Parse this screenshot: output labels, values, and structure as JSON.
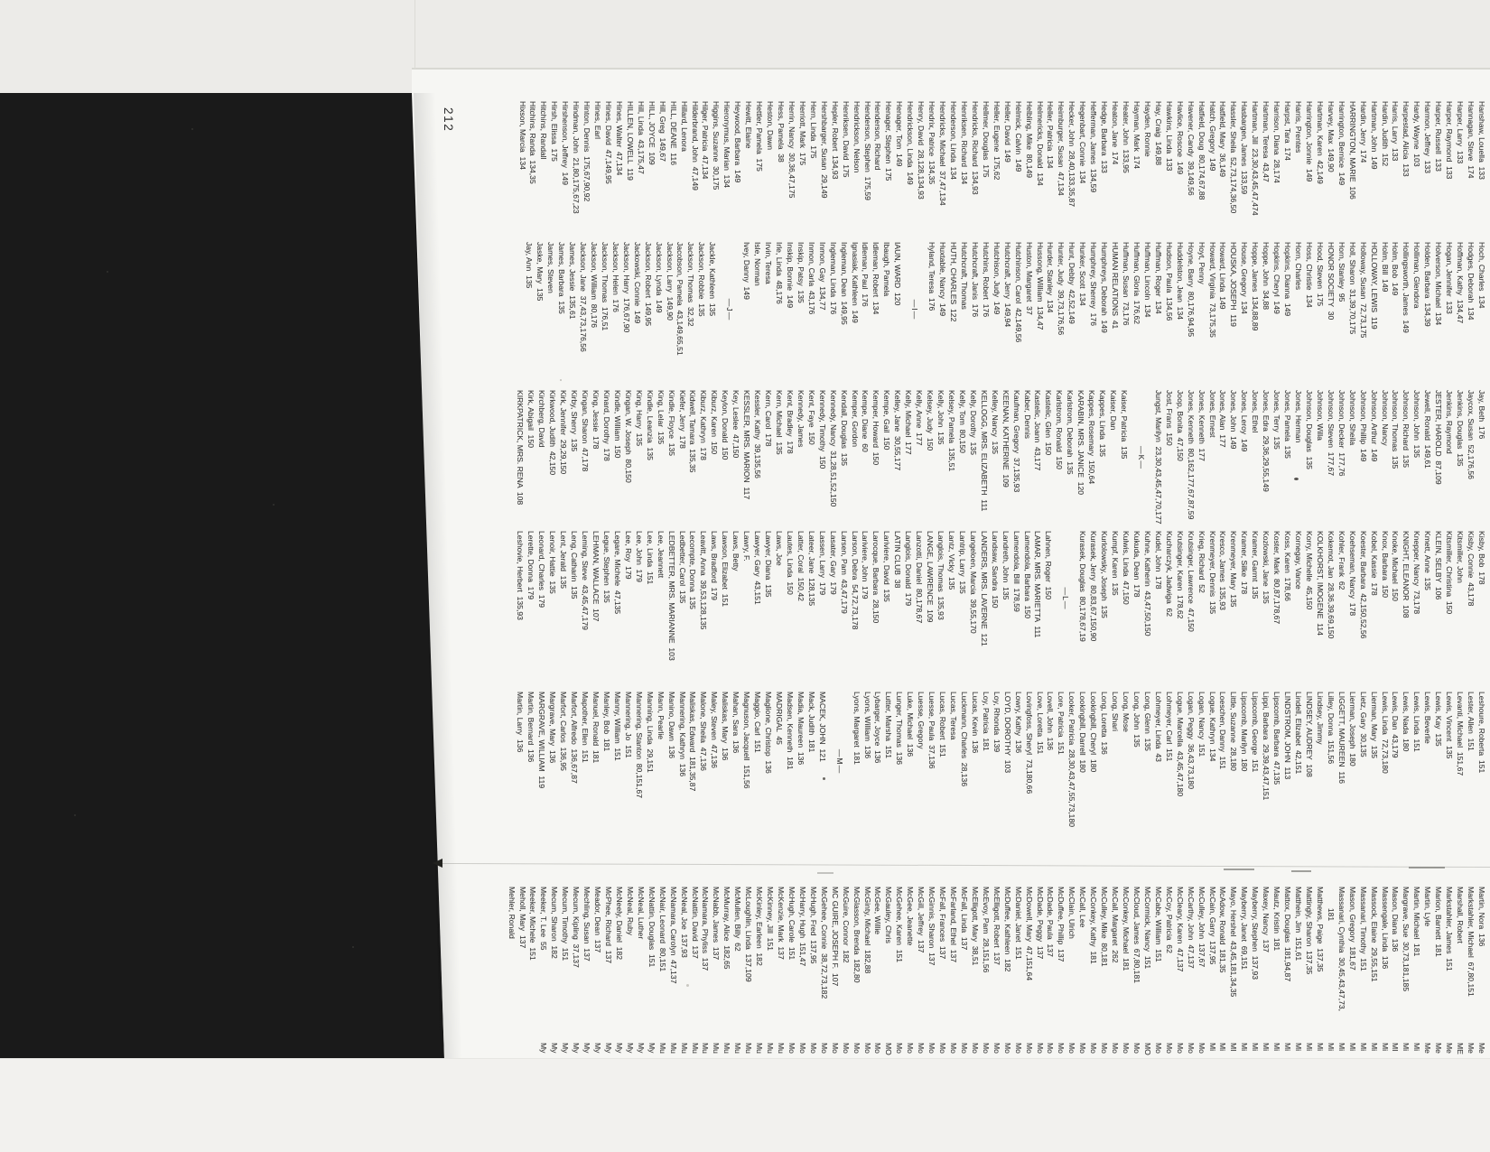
{
  "page_number": "212",
  "colors": {
    "paper": "#f6f6f3",
    "backing": "#1a1a1a",
    "ink": "#3a3a3a",
    "top_strip": "#ecebe8",
    "bottom_sheet": "#f2f1ee"
  },
  "columns": [
    {
      "name": "column-1",
      "entries": [
        "Hanshaw, Louella  133",
        "Hannagan, Steve  174",
        "Harper, Larry  133",
        "Harper, Raymond  133",
        "Harper, Russell  133",
        "Harmon, Jeffrey  133",
        "Hardy, Wayne  103",
        "Harpestad, Alicia  133",
        "Harris, Larry  133",
        "Hardin, Judith  152",
        "Hartman, John  149",
        "Hardin, Jerry  174",
        "HARRINGTON, MARIE  106",
        "Harrington, Bernice  149",
        "Harvey, Max  149,90",
        "Hartman, Karen  42,149",
        "Harrington, Jonnie  149",
        "Harris, Prentes",
        "Harpst, Tara  174",
        "Harrison, Diana  28,174",
        "Hartman, Teresa  43,47",
        "Hartman, Jill  23,30,43,45,47,474",
        "Hasbargen, James  133,59",
        "Hassler, Sheila  52,73,174,36,50",
        "Hatfield, Mary  36,149",
        "Hatch, Gregory  149",
        "Hatfield, Doug  80,174,67,88",
        "Havener, Candy  39,149,56",
        "Havlice, Roscoe  149",
        "Hawkins, Linda  133",
        "Hay, Craig  149,88",
        "Hayden, Ronnie",
        "Hayman, Mark  174",
        "Heater, John  133,95",
        "Heaton, Jane  174",
        "Hedge, Barbara  133",
        "Hefferman, James  134,59",
        "Hegenbart, Connie  134",
        "Hecker, John  28,40,133,35,87",
        "Heimburger, Susan  47,134",
        "Heller, Patricia  134",
        "Helmericks, Donald  134",
        "Helbling, Mike  80,149",
        "Helmick, Calvin  149",
        "Heller, David  149",
        "Heller, Eugene  175,62",
        "Hellmer, Douglas  175",
        "Hendricks, Richard  134,93",
        "Henriksen, Richard  134",
        "Henderson, Linda  134",
        "Hendricks, Michael  37,47,134",
        "Hendrix, Patrice  134,35",
        "Henry, David  28,128,134,93",
        "Hendrickson, Linda  149",
        "Henager, Tom  149",
        "Henager, Stephen  175",
        "Henderson, Richard",
        "Henderson, Stephen  175,59",
        "Hendrickson, Nelson",
        "Henriksen, David  175",
        "Hepler, Robert  134,93",
        "Hershbarger, Susan  29,149",
        "Hern, Linda  175",
        "Herriott, Mark  175",
        "Herrin, Nancy  30,36,47,175",
        "Hess, Pamela  38",
        "Heston, Dawn",
        "Hettler, Pamela  175",
        "Hewitt, Elaine",
        "Heywood, Barbara  149",
        "Hieronymus, Marian  134",
        "Higgins, Suzanne  30,175",
        "Hilger, Patricia  47,134",
        "Hilderbrand, John  47,149",
        "Hillard, Lenora",
        "HILL, DEANE  116",
        "Hill, Greg  149,67",
        "HILL, JOYCE  109",
        "Hill, Linda  43,175,47",
        "HILLEN, LOWELL  119",
        "Hines, Walter  47,134",
        "Hines, David  47,149,95",
        "Hines, Earl",
        "Hinton, Dennis  175,67,90,92",
        "Hindman, John  21,80,175,67,23",
        "Hirshenson, Jeffrey  149",
        "Hirsh, Elissa  175",
        "Hitchins, Randall",
        "Hitchins, Randa  134,35",
        "Hixson, Marcia  134"
      ]
    },
    {
      "name": "column-2",
      "entries": [
        "Hoch, Charles  134",
        "Hodges, Deborah  134",
        "Hoffman, Kathy  134,47",
        "Hogan, Jennifer  133",
        "Holverson, Michael  134",
        "Holden, Barbara  134,39",
        "Holliman, Glendora",
        "Hollingsworth, James  149",
        "Holm, Bob  149",
        "Holm, Bill  149",
        "HOLLOWAY, LEWIS  119",
        "Holloway, Susan  72,73,175",
        "Holl, Sharon  31,39,70,175",
        "Horn, Stanley  95",
        "HONOR SOCIETY  30",
        "Hood, Steven  175",
        "Hoss, Christie  134",
        "Horn, Charles",
        "Hopkins, Dianna  149",
        "Hopkins, Cheryl  149",
        "Hoppe, John  34,88",
        "Hoppe, James  134,88,89",
        "House, Gregory  134",
        "HOUSKA, JOSEPH  119",
        "Howard, Linda  149",
        "Howard, Virginia  73,175,35",
        "Hoyt, Penny",
        "Hoyne, Barry  80,176,94,95",
        "Huddelston, Jean  134",
        "Hudson, Paula  134,56",
        "Huffman, Roger  134",
        "Huffman, Lincoln  134",
        "Huffman, Gloria  176,62",
        "Huffman, Susan  73,176",
        "HUMAN RELATIONS  41",
        "Humphreys, Deborah  149",
        "Humphrey, Sherrey  176",
        "Hunker, Scott  134",
        "Hunt, Debby  42,52,149",
        "Hunter, Judy  39,73,176,56",
        "Hurder, Stanley  134",
        "Hussong, William  134,47",
        "Huston, Margaret  37",
        "Hutchinson, Carol  42,149,56",
        "Hutchcraft, Jerry  149,94",
        "Hutchison, Judy  149",
        "Hutchins, Robert  176",
        "Hutchcraft, Janis  176",
        "Hutchcraft, Thomas",
        "HUTH, CHARLES  122",
        "Huxtable, Nancy  149",
        "Hyland, Teresa  176",
        "—I—",
        "IAUN, WARD  120",
        "Ibaugh, Pamela",
        "Idleman, Robert  134",
        "Idleman, Paul  176",
        "Ignasiak, Kathleen  149",
        "Ingleman, Dean  149,95",
        "Ingleman, Linda  176",
        "Inmon, Gay  134,77",
        "Inmon, Carla  43,176",
        "Inskip, Patsy  135",
        "Inskip, Bonnie  149",
        "Irle, Linda  48,176",
        "Irvin, Teresa",
        "Isle, Norman",
        "Ivey, Danny  149",
        "—J—",
        "Jackle, Kathleen  135",
        "Jackson, Robbie  135",
        "Jackson, Thomas  32,32",
        "Jacobson, Pamela  43,149,65,51",
        "Jackson, Larry  149,90",
        "Jackson, Lynda  149",
        "Jackson, Robert  149,95",
        "Jackowski, Connie  149",
        "Jackson, Harry  176,67,90",
        "Jackson, Helen  176",
        "Jackson, Thomas  176,51",
        "Jackson, William  80,176",
        "Jackson, Jane  37,43,73,176,56",
        "James, Jessie  135,61",
        "James, Barbara  135",
        "James, Steven",
        "Jaske, Mary  135",
        "Jay, Ann  135"
      ]
    },
    {
      "name": "column-3",
      "entries": [
        "Jay, Beth  176",
        "Jaycox, Susan  52,176,56",
        "Jenkins, Douglas  135",
        "Jenkins, Raymond",
        "JESTER, HAROLD  87,109",
        "Jewell, Ronald  149,61",
        "Johnson, John  135",
        "Johnson, Richard  135",
        "Johnson, Thomas  135",
        "Johnson, Nancy",
        "Johnson, Arthur  149",
        "Johnson, Phillip  149",
        "Johnson, Sheila",
        "Johnson, Decker  177,76",
        "Johnson, Steven  177,67",
        "Johnson, Willa",
        "Johnson, Douglas  135",
        "Jones, Herman",
        "Jones, Pamela  135",
        "Jones, Terry  135",
        "Jones, Edra  29,36,29,55,149",
        "Jones, Ethel",
        "Jones, Leroy  149",
        "Jones, John  149",
        "Jones, Alan  177",
        "Jones, Ernest",
        "Jones, Kenneth  177",
        "Jones, Kenneth  80,162,177,67,87,59",
        "Joop, Bonita  47,150",
        "Jost, Frans  150",
        "Jungst, Marilyn  23,30,43,45,47,70,177",
        "—K—",
        "Kaiser, Patricia  135",
        "Kaiser, Dan",
        "Kappes, Linda  135",
        "Kappes, Rosemary  150,64",
        "KARABIN, MRS. JANICE  120",
        "Karlstrom, Deborah  135",
        "Karlstrom, Ronald  150",
        "Kastelic, Glen  150",
        "Kastelic, Joann  43,177",
        "Kaber, Dennis",
        "Kaufman, Gregory  37,135,93",
        "KEENAN, KATHERINE  109",
        "Kelley, Nancy  135",
        "KELLOGG, MRS. ELIZABETH  111",
        "Kelly, Dorothy  135",
        "Kelly, Tom  80,150",
        "Kelsey, Pamela  135,51",
        "Kelly, John  135",
        "Kelsey, Judy  150",
        "Kelly, Anne  177",
        "Kelly, Michael  177",
        "Kelley, Jane  30,55,177",
        "Kempe, Gail  150",
        "Kemper, Howard  150",
        "Kempe, Diane  60",
        "Kemper, Gordon",
        "Kendall, Douglas  135",
        "Kennedy, Nancy  31,28,51,52,150",
        "Kennedy, Timothy  150",
        "Kent, Faye  150",
        "Kennedy, James",
        "Kent, Bradley  178",
        "Kern, Michael  135",
        "Kern, Carol  178",
        "Kessler, Kathy  39,135,56",
        "KESSLER, MRS. MARION  117",
        "Key, Leslee  47,150",
        "Keylon, Donald  150",
        "Kiburz, Karen  150",
        "Kiburz, Kathryn  178",
        "Kidwell, Tamara  135,35",
        "Kiefer, Jerry  178",
        "Kindle, Floyce  135",
        "King, Lelar  135",
        "Kindle, Leanzia  135",
        "King, Harry  135",
        "Kingan, W. Joseph  80,150",
        "Kindle, William  150",
        "Kinard, Dorothy  178",
        "King, Jessie  178",
        "Kingan, Sharon  47,178",
        "Kirby, Sherry  135",
        "Kirk, Jennifer  29,29,150",
        "Kirkwood, Judith  42,150",
        "Kirchberg, David",
        "Kirk, Abigail  150",
        "KIRKPATRICK, MRS. RENA  108"
      ]
    },
    {
      "name": "column-4",
      "entries": [
        "Kisby, Bob  178",
        "Kisby, Connie  43,178",
        "Kitsmiller, John",
        "Kitsmiller, Christina  150",
        "KLEIN, SELBY  106",
        "Kmett, Anne  135",
        "Knepper, Nancy  73,178",
        "KNIGHT, ELEANOR  108",
        "Knoke, Michael  150",
        "Knox, Barbara  150",
        "Kobel, Kassie  178",
        "Koester, Barbara  42,150,52,56",
        "Koehseman, Nancy  178",
        "Kohler, Frank  62",
        "Kokemot, Jan  28,36,39,69,150",
        "KOLKHORST, IMOGENE  114",
        "Korry, Michelle  45,150",
        "Kornegay, Vance",
        "Koss, Karen  178,66",
        "Koster, Mark  80,87,178,67",
        "Kozlowski, Jane  135",
        "Kramer, Garmt  135",
        "Kramer, Silke  178",
        "Krenmeyer, Mary  135",
        "Kresco, James  135,93",
        "Krenmeyer, Dennis  135",
        "Krieg, Richard  52",
        "Krutsinger, Lawrence  47,150",
        "Krutsinger, Karen  178,62",
        "Kucharczyk, Jadwiga  62",
        "Kudel, John  178",
        "Kuhne, Katherin  43,47,50,150",
        "Kukuda, Dean  178",
        "Kulwis, Linda  47,150",
        "Kumpf, Karen  135",
        "Kurlolowsky, Joseph  135",
        "Kurasek, Jerry  80,83,67,150,90",
        "Kurasek, Douglas  80,178,67,19",
        "—L—",
        "Lahnen, Roger  150",
        "LAMAR, MRS. MARIETTA  111",
        "Lamendola, Barbara  150",
        "Lamendola, Bill  178,59",
        "Landreth, John  135",
        "Landsaw, Sandra  150",
        "LANDERS, MRS. LAVERNE  121",
        "Langeloen, Marcia  39,55,170",
        "Lantrip, Larry  135",
        "Lantz, Vicky  135",
        "Langlois, Thomas  135,93",
        "LANGE, LAWRENCE  109",
        "Lanzotti, Daniel  80,178,67",
        "Langlois, Donald  179",
        "LATIN CLUB  38",
        "Lariviere, David  135",
        "Larocque, Barbara  28,150",
        "Lariviere, John  179",
        "Larson, Debra  54,72,73,178",
        "Larsen, Pam  43,47,179",
        "Lasater, Gary  179",
        "Lassen, Larry  179",
        "Lateer, Jane  128,135",
        "Latter, Coral  150,42",
        "Lautes, Linda  150",
        "Laws, Joe",
        "Lawyer, Diana  135",
        "Lawyer, Gary  43,151",
        "Lawry, F.",
        "Laws, Betty",
        "Lawson, Elizabet  151",
        "Laws, Bradford  179",
        "Leavitt, Anna  39,53,128,135",
        "Lecompte, Donna  135",
        "Ledbetter, Carol  135",
        "LEDBETTER, MRS. MARIANNE  103",
        "Lee, Jeannett",
        "Lee, Linda  151",
        "Lee, John  179",
        "Lee, Roy  179",
        "Legare, Michele  47,135",
        "Legue, Stephen  135",
        "LEHMAN, WALLACE  107",
        "Leming, Steve  43,45,47,179",
        "Leng, Catharin  135",
        "Lent, Jerald  135",
        "Lenoir, Hattie  135",
        "Leonard, Charles  179",
        "Lerette, Donna  179",
        "Leshovie, Herbert  135,93"
      ]
    },
    {
      "name": "column-5",
      "entries": [
        "Leshoure, Roberta  151",
        "Lester, Allen  151",
        "Levanti, Michael  151,67",
        "Lewis, Vincent  135",
        "Lewis, Kay  135",
        "Lewis, Beverlie",
        "Lewis, Linda  151",
        "Lewis, Nada  180",
        "Lewis, Dan  43,179",
        "Lewis, Linda  72,73,180",
        "Lierman, Mary  135",
        "Lietz, Gary  30,135",
        "Lierman, Joseph  180",
        "LIGGETT, MAUREEN  116",
        "Lilley, Donna  151,56",
        "Lindsey, Jimmy",
        "LINDSEY, AUDREY  108",
        "Lindell, Elizabet  42,151",
        "LINDSTROM, JOHN  113",
        "Lipscomb, Barbara  47,135",
        "Lippi, Barbara  29,39,43,47,151",
        "Lipscomb, George  151",
        "Lipscomb, Marilyn  180",
        "Little, Suzanne  28,180",
        "Loeschen, Danny  151",
        "Logue, Kathryn  134",
        "Logan, Nancy  151",
        "Logan, Peggy  36,43,73,180",
        "Logue, Marcella  43,45,47,180",
        "Lohmeyer, Carl  151",
        "Lohmeyer, Linda  43",
        "Long, Glenn  135",
        "Long, John  135",
        "Long, Mose",
        "Long, Shari",
        "Long, Loretta  136",
        "Lookingbill, Cheryl  180",
        "Lookingbill, Darrell  180",
        "Looker, Patricia  28,30,43,47,55,73,180",
        "Lore, Patricia  151",
        "Lovell, John  136",
        "Love, Loretta  151",
        "Lovingfoss, Sheryl  73,180,66",
        "Lowry, Kathy  136",
        "LOYD, DOROTHY  103",
        "Loy, Rhonda  139",
        "Loy, Patricia  181",
        "Lucas, Kevin  136",
        "Luckmann, Charles  28,136",
        "Lucas, Teresa",
        "Lucas, Robert  151",
        "Luesse, Paula  37,136",
        "Luesse, Gregory",
        "Luke, Michael  136",
        "Lunger, Thomas  136",
        "Lutter, Marsha  151",
        "Lybarger, Joyce  136",
        "Lyons, William  136",
        "Lyons, Margaret  181",
        "—M—",
        "MACEK, JOHN  121",
        "Mack, Judith  181",
        "Madia, Maureen  136",
        "Madsen, Kenneth  181",
        "MADRIGAL  45",
        "Maglione, Christop  136",
        "Maggio, Carl  151",
        "Magnuson, Jacquell  151,56",
        "Mahan, Sara  136",
        "Maliskas, Mary  136",
        "Maley, Steven  47,136",
        "Malone, Sheila  47,136",
        "Maliskas, Edward  181,35,87",
        "Mannering, Kathryn  136",
        "Manino, Dawn  136",
        "Mann, Pearlie",
        "Manning, Linda  29,151",
        "Mannering, Stanton  80,151,67",
        "Mannering, Jo  151",
        "Manny, William  151",
        "Manley, Bob  181",
        "Manuel, Ronald  181",
        "Mapother, Ellen  151",
        "Marfort, Alfredo  136,67,87",
        "Marfort, Carlos  136,95",
        "Margrave, Mary  136",
        "MARGRAVE, WILLIAM  119",
        "Martin, Bernard  136",
        "Martin, Larry  136"
      ]
    },
    {
      "name": "column-6",
      "entries": [
        "Martin, Nora  136",
        "Markstahler, Michael  67,80,151",
        "Marshall, Robert",
        "Markstahler, James  151",
        "Marion, Barnett  181",
        "Martin, Lyle",
        "Martin, Michael  181",
        "Margrave, Sue  30,73,181,185",
        "Mason, Diana  136",
        "Massengale, Linda  136",
        "Massock, Elaine  29,55,151",
        "Massanari, Timothy  151",
        "Mason, Gregory  181,67",
        "Massanari, Cynthia  30,45,43,47,73,",
        "          181",
        "Matthews, Paige  137,35",
        "Mattingly, Sharon  137,35",
        "Matthein, Jim  151,61",
        "Mattox, Douglas  181,94,87",
        "Mautz, Kristin  181",
        "Maxey, Nancy  137",
        "Mayberry, Stephen  137,93",
        "Mayberry, Janet  69,151",
        "Mayo, Hershel  43,45,181,34,35",
        "McAdow, Ronald  181,35",
        "McCain, Garry  137,95",
        "McCulley, John  137,67",
        "McCarthy, John  47,137",
        "McCleary, Karen  47,137",
        "McCoy, Patricia  62",
        "McCabe, William  151",
        "McCormick, Nancy  151",
        "McCloud, James  67,80,181",
        "McConkey, Michael  181",
        "McCall, Margaret  262",
        "McCulley, Mike  80,181",
        "McConkey, Kathy  181",
        "McCall, Lee",
        "McClain, Ulrich",
        "McDuffee, Phillip  137",
        "McDade, Paula  137",
        "McDade, Peggy  137",
        "McDowell, Mary  47,151,64",
        "McDaniel, Janet  151",
        "McDuffee, Kathleen  182",
        "McElligott, Robert  137",
        "McEvoy, Pam  28,151,56",
        "McElligott, Mary  38,51",
        "McFall, Linda  137",
        "McFarland, Ethel  137",
        "McFall, Frances  137",
        "McGinnis, Sharon  137",
        "McGill, Jeffrey  137",
        "McGee, Jeanette",
        "McGehee, Karen  151",
        "McGauley, Chris",
        "McGee, Willie",
        "McGinty, Michael  182,88",
        "McGlasson, Brenda  182,80",
        "McGuire, Connor  182",
        "MC GUIRE, JOSEPH F.  107",
        "McGehee, Connie  38,72,73,182",
        "McHugh, Fred  137,95",
        "McHarry, Hugh  151,47",
        "McHugh, Carole  151",
        "McKenzie, Mark  137",
        "McKinney, Jill  151",
        "McKinley, Earleen  182",
        "McLoughlin, Linda  137,109",
        "McMullen, Billy  62",
        "McMurray, Alice  182,65",
        "McNabb, James  137",
        "McNamara, Phyliss  137",
        "McNattin, David  137",
        "McNeal, Joe  137,93",
        "McNamara, Carolyn  47,137",
        "McNair, Leonard  80,151",
        "McNattin, Douglas  151",
        "McNeal, Luther",
        "McNeal, Ruby",
        "McNeely, Daniel  182",
        "McPhee, Richard  137",
        "Meador, Dean  137",
        "Mechling, Susan  137",
        "Mecum, Kipling  37,137",
        "Mecum, Timothy  151",
        "Mecum, Sharon  182",
        "Meeker, T. Lee  55",
        "Meeker, Michele  151",
        "Meholl, Mary  137",
        "Mehler, Ronald"
      ]
    },
    {
      "name": "column-7-clipped",
      "entries": [
        "Me",
        "Me",
        "ME",
        "Me",
        "Me",
        "Me",
        "Mi",
        "Mi",
        "MI",
        "Mi",
        "Mi",
        "Mi",
        "Mi",
        "Mi",
        "Mi",
        "Mi",
        "Mi",
        "Mi",
        "Mi",
        "Mi",
        "Mi",
        "Mi",
        "Mi",
        "MI",
        "Mi",
        "Mi",
        "Mo",
        "Mo",
        "Mo",
        "Mo",
        "Mo",
        "MO",
        "Mo",
        "Mo",
        "Mo",
        "Mo",
        "Mo",
        "Mo",
        "Mo",
        "Mo",
        "Mo",
        "Mo",
        "Mo",
        "Mo",
        "Mo",
        "Mo",
        "Mo",
        "Mo",
        "Mo",
        "Mo",
        "Mo",
        "Mo",
        "Mo",
        "Mo",
        "Mo",
        "MO",
        "Mo",
        "Mo",
        "Mo",
        "Mo",
        "Mo",
        "Mo",
        "Mo",
        "Mo",
        "Mo",
        "Mu",
        "Mu",
        "Mu",
        "Mu",
        "Mu",
        "Mu",
        "Mu",
        "Mu",
        "Mu",
        "Mu",
        "Mu",
        "Mu",
        "My",
        "My",
        "My",
        "My",
        "My",
        "My",
        "My",
        "My",
        "My",
        "My",
        "My"
      ]
    }
  ]
}
